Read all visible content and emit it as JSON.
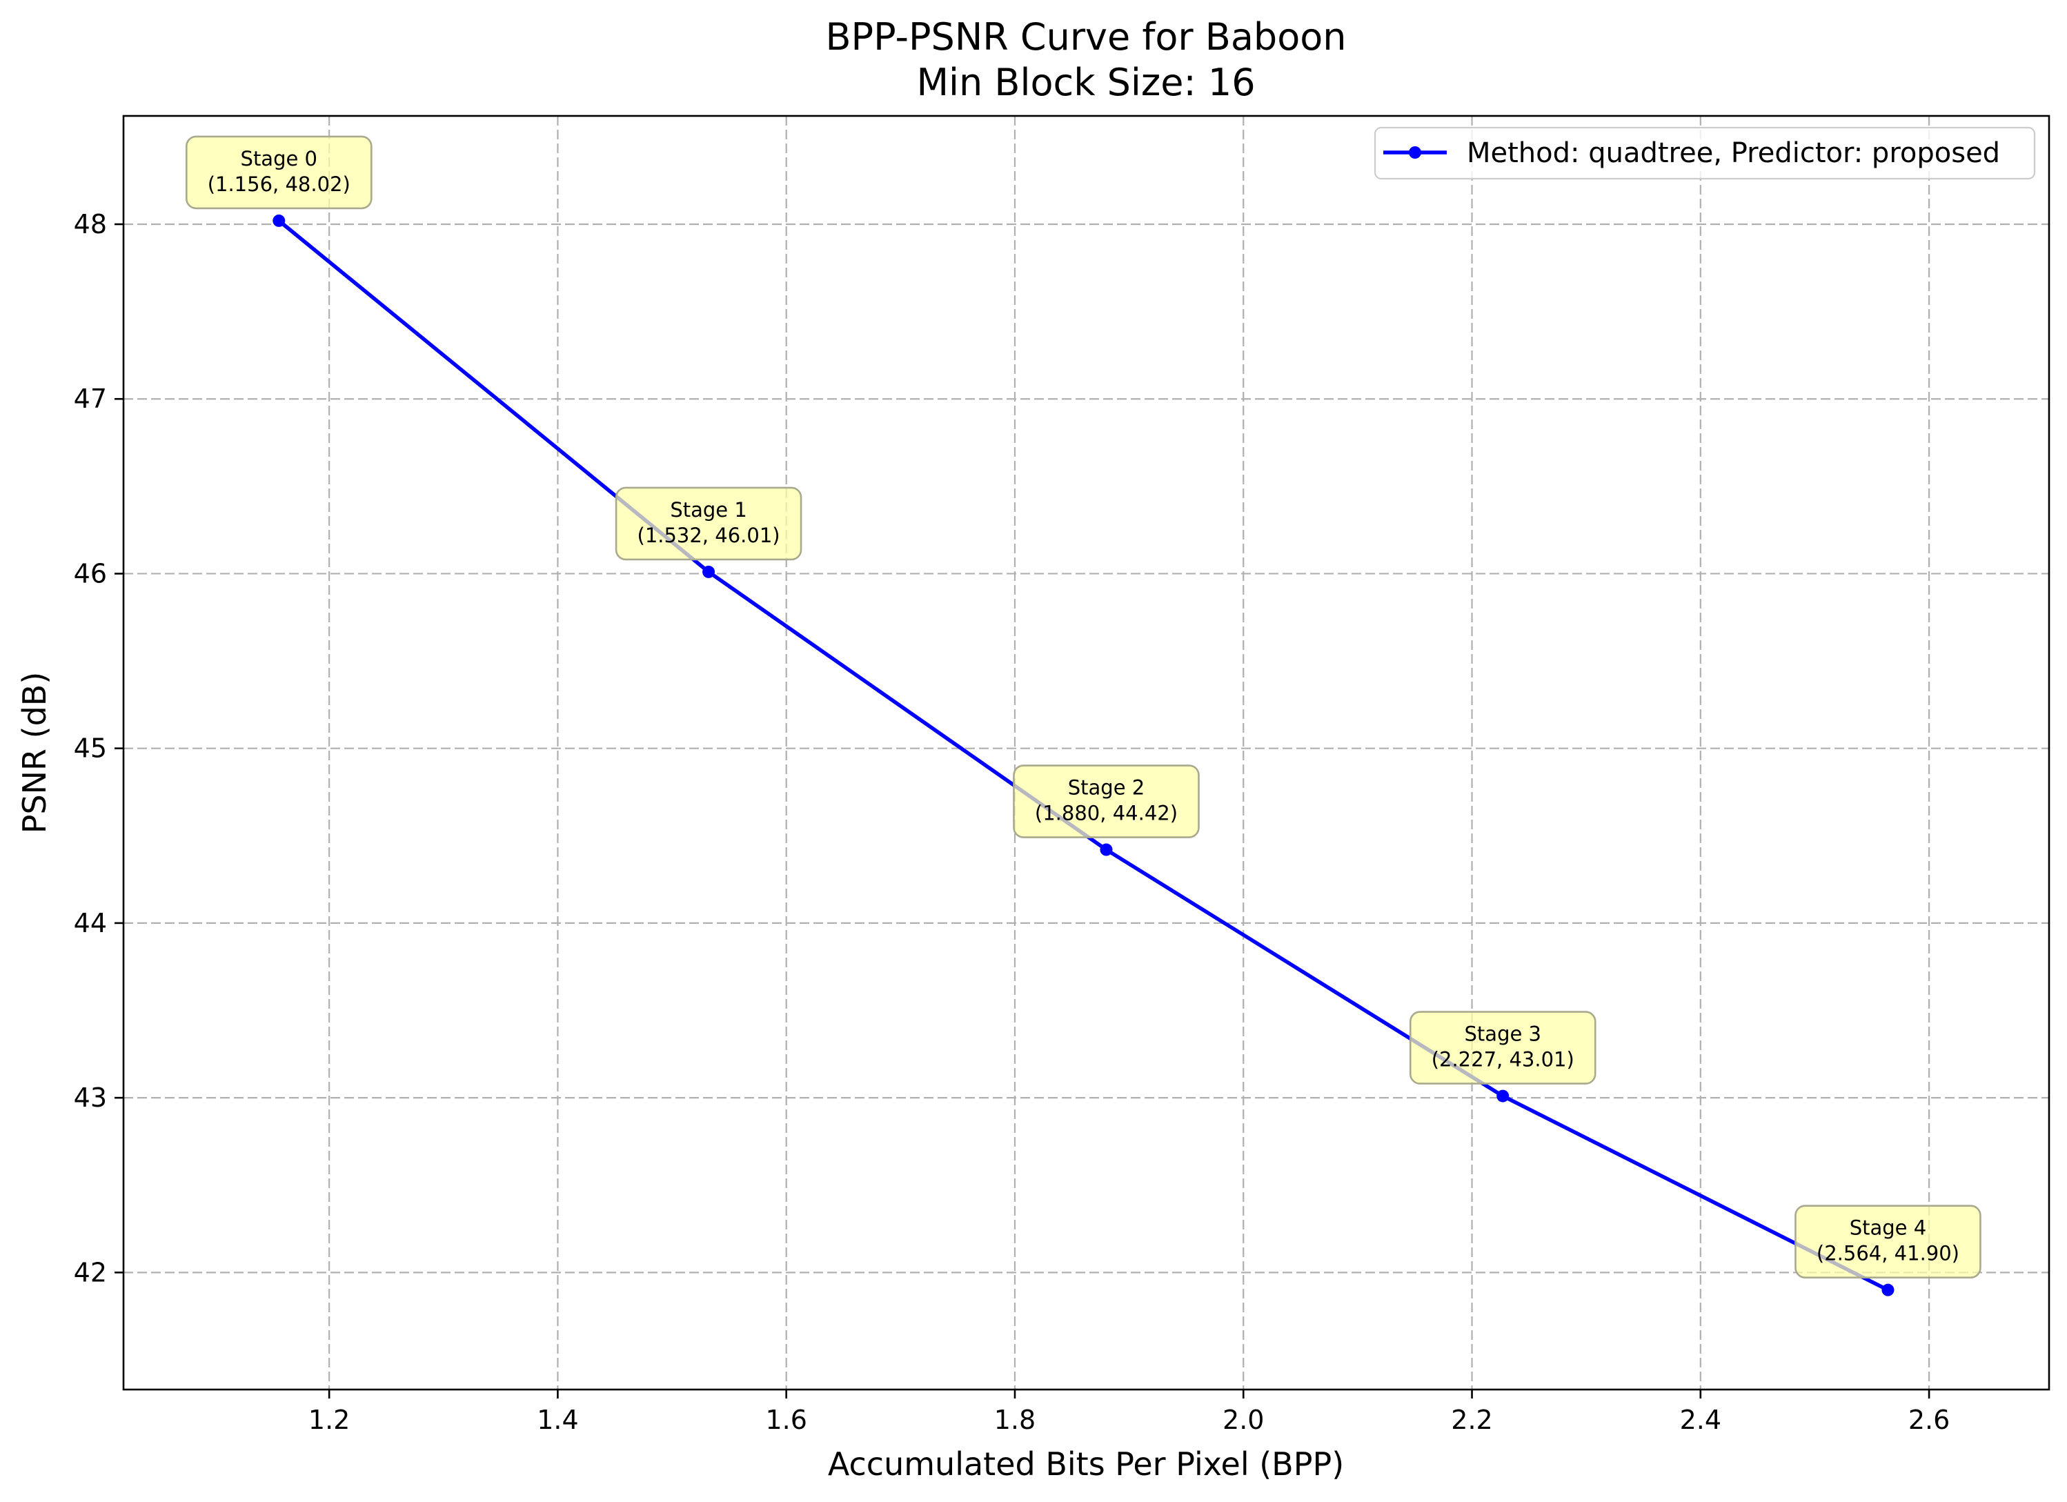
{
  "chart_data": {
    "type": "line",
    "title": "BPP-PSNR Curve for Baboon",
    "subtitle": "Min Block Size: 16",
    "xlabel": "Accumulated Bits Per Pixel (BPP)",
    "ylabel": "PSNR (dB)",
    "xlim": [
      1.02,
      2.705
    ],
    "ylim": [
      41.33,
      48.62
    ],
    "xticks": [
      1.2,
      1.4,
      1.6,
      1.8,
      2.0,
      2.2,
      2.4,
      2.6
    ],
    "xtick_labels": [
      "1.2",
      "1.4",
      "1.6",
      "1.8",
      "2.0",
      "2.2",
      "2.4",
      "2.6"
    ],
    "yticks": [
      42,
      43,
      44,
      45,
      46,
      47,
      48
    ],
    "ytick_labels": [
      "42",
      "43",
      "44",
      "45",
      "46",
      "47",
      "48"
    ],
    "grid": true,
    "legend_position": "top-right",
    "series": [
      {
        "name": "Method: quadtree, Predictor: proposed",
        "color": "#0000ff",
        "marker": "circle",
        "x": [
          1.156,
          1.532,
          1.88,
          2.227,
          2.564
        ],
        "y": [
          48.02,
          46.01,
          44.42,
          43.01,
          41.9
        ]
      }
    ],
    "annotations": [
      {
        "line1": "Stage 0",
        "line2": "(1.156, 48.02)",
        "x": 1.156,
        "y": 48.02
      },
      {
        "line1": "Stage 1",
        "line2": "(1.532, 46.01)",
        "x": 1.532,
        "y": 46.01
      },
      {
        "line1": "Stage 2",
        "line2": "(1.880, 44.42)",
        "x": 1.88,
        "y": 44.42
      },
      {
        "line1": "Stage 3",
        "line2": "(2.227, 43.01)",
        "x": 2.227,
        "y": 43.01
      },
      {
        "line1": "Stage 4",
        "line2": "(2.564, 41.90)",
        "x": 2.564,
        "y": 41.9
      }
    ],
    "annotation_fill": "#ffffa8",
    "annotation_edge": "#a9a98e"
  }
}
